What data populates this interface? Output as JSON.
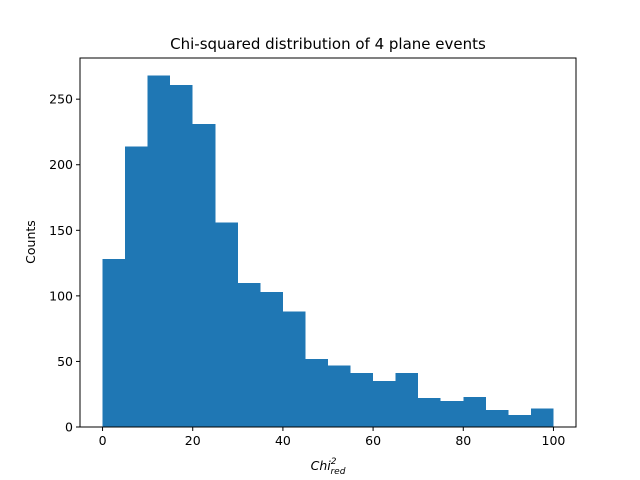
{
  "chart_data": {
    "type": "bar",
    "title": "Chi-squared distribution of 4 plane events",
    "xlabel": {
      "base": "Chi",
      "sup": "2",
      "sub": "red"
    },
    "ylabel": "Counts",
    "bin_edges": [
      0,
      5,
      10,
      15,
      20,
      25,
      30,
      35,
      40,
      45,
      50,
      55,
      60,
      65,
      70,
      75,
      80,
      85,
      90,
      95,
      100
    ],
    "values": [
      128,
      214,
      268,
      261,
      231,
      156,
      110,
      103,
      88,
      52,
      47,
      41,
      35,
      41,
      22,
      20,
      23,
      13,
      9,
      14
    ],
    "xlim": [
      -5,
      105
    ],
    "ylim": [
      0,
      281.4
    ],
    "xticks": [
      0,
      20,
      40,
      60,
      80,
      100
    ],
    "yticks": [
      0,
      50,
      100,
      150,
      200,
      250
    ],
    "bar_color": "#1f77b4",
    "grid": false,
    "legend": "none"
  }
}
